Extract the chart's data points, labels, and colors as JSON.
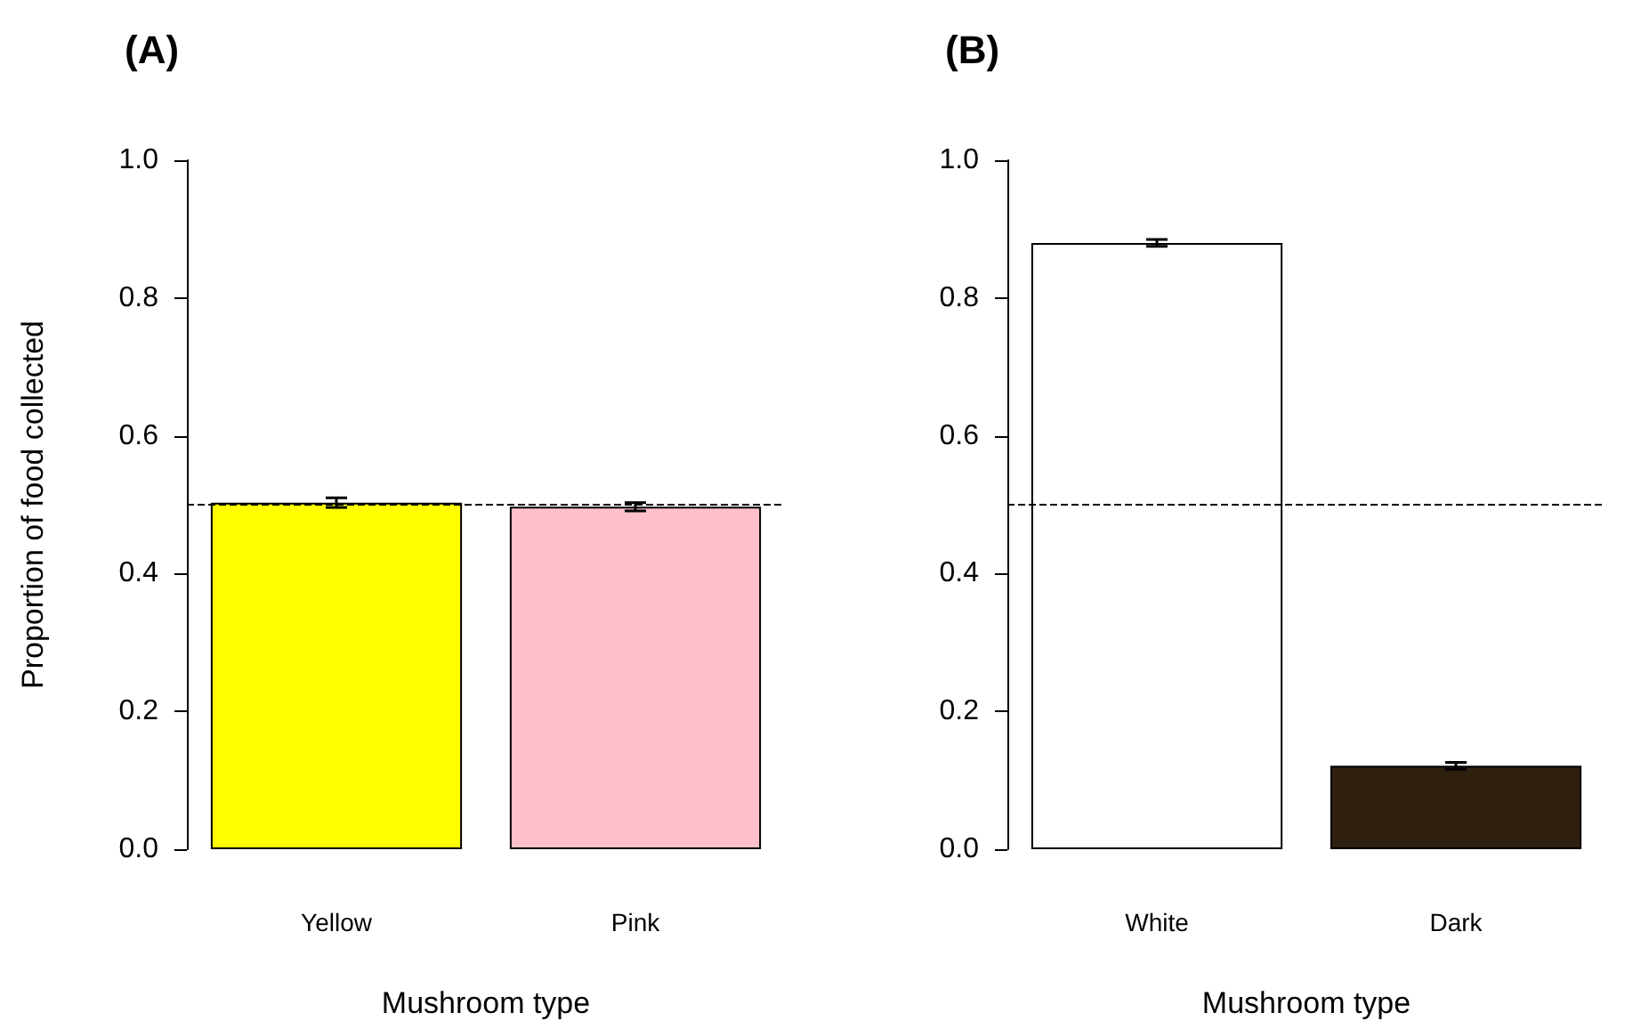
{
  "chart_data": [
    {
      "type": "bar",
      "title": "(A)",
      "xlabel": "Mushroom type",
      "ylabel": "Proportion of food collected",
      "categories": [
        "Yellow",
        "Pink"
      ],
      "values": [
        0.503,
        0.497
      ],
      "colors": [
        "#ffff00",
        "#ffc0cb"
      ],
      "errors": [
        0.007,
        0.006
      ],
      "ylim": [
        0,
        1
      ],
      "yticks": [
        {
          "value": 0,
          "label": "0.0"
        },
        {
          "value": 0.2,
          "label": "0.2"
        },
        {
          "value": 0.4,
          "label": "0.4"
        },
        {
          "value": 0.6,
          "label": "0.6"
        },
        {
          "value": 0.8,
          "label": "0.8"
        },
        {
          "value": 1,
          "label": "1.0"
        }
      ],
      "ref_lines": [
        {
          "axis": "y",
          "value": 0.5,
          "line_style": "dashed",
          "color": "#000000"
        }
      ],
      "grid": false
    },
    {
      "type": "bar",
      "title": "(B)",
      "xlabel": "Mushroom type",
      "categories": [
        "White",
        "Dark"
      ],
      "values": [
        0.88,
        0.121
      ],
      "colors": [
        "#ffffff",
        "#2e1f0f"
      ],
      "errors": [
        0.005,
        0.005
      ],
      "ylim": [
        0,
        1
      ],
      "yticks": [
        {
          "value": 0,
          "label": "0.0"
        },
        {
          "value": 0.2,
          "label": "0.2"
        },
        {
          "value": 0.4,
          "label": "0.4"
        },
        {
          "value": 0.6,
          "label": "0.6"
        },
        {
          "value": 0.8,
          "label": "0.8"
        },
        {
          "value": 1,
          "label": "1.0"
        }
      ],
      "ref_lines": [
        {
          "axis": "y",
          "value": 0.5,
          "line_style": "dashed",
          "color": "#000000"
        }
      ],
      "grid": false
    }
  ]
}
